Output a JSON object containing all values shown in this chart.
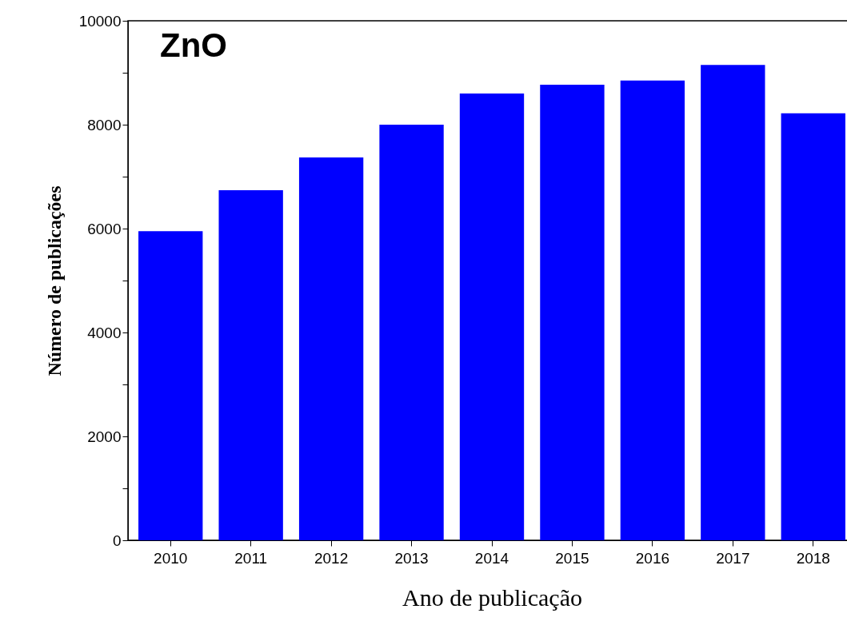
{
  "chart_data": {
    "type": "bar",
    "ylabel": "Número de publicações",
    "xlabel": "Ano de publicação",
    "annotations": [
      "ZnO"
    ],
    "categories": [
      "2010",
      "2011",
      "2012",
      "2013",
      "2014",
      "2015",
      "2016",
      "2017",
      "2018"
    ],
    "values": [
      5950,
      6740,
      7370,
      8000,
      8600,
      8770,
      8850,
      9150,
      8220
    ],
    "color": "#0000ff",
    "ylim": [
      0,
      10000
    ],
    "yticks": [
      0,
      {
        "value": 1000,
        "label": null
      },
      2000,
      {
        "value": 3000,
        "label": null
      },
      4000,
      {
        "value": 5000,
        "label": null
      },
      6000,
      {
        "value": 7000,
        "label": null
      },
      8000,
      {
        "value": 9000,
        "label": null
      },
      10000
    ]
  }
}
